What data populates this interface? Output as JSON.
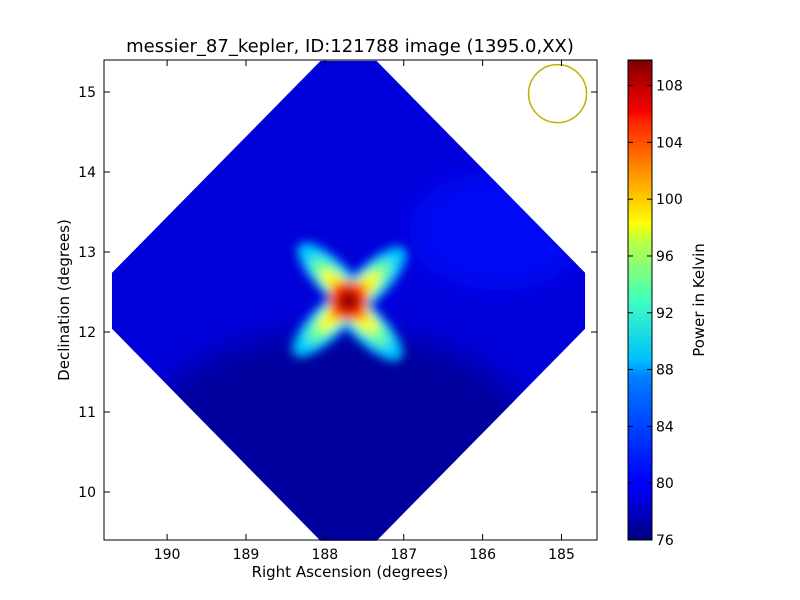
{
  "chart_data": {
    "type": "heatmap",
    "title": "messier_87_kepler, ID:121788 image (1395.0,XX)",
    "xlabel": "Right Ascension (degrees)",
    "ylabel": "Declination (degrees)",
    "xlim": [
      190.8,
      184.55
    ],
    "ylim": [
      9.4,
      15.4
    ],
    "x_ticks": [
      190,
      189,
      188,
      187,
      186,
      185
    ],
    "y_ticks": [
      10,
      11,
      12,
      13,
      14,
      15
    ],
    "colorbar": {
      "label": "Power in Kelvin",
      "range": [
        76,
        109.8
      ],
      "ticks": [
        76,
        80,
        84,
        88,
        92,
        96,
        100,
        104,
        108
      ],
      "colormap": "jet"
    },
    "field": {
      "center_ra": 187.7,
      "center_dec": 12.39,
      "half_width_deg": 3.0,
      "background_value": 79,
      "peak_value": 109
    },
    "beam_circle": {
      "ra": 185.05,
      "dec": 14.98,
      "color": "#bfb000"
    }
  }
}
